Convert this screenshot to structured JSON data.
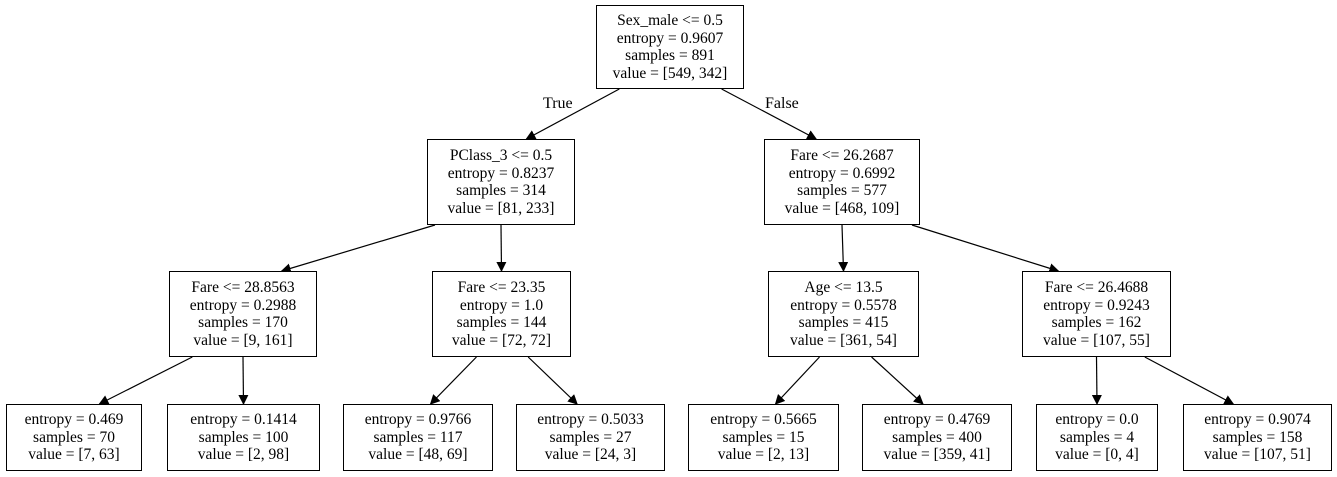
{
  "tree": {
    "edge_labels": {
      "true_label": "True",
      "false_label": "False"
    },
    "nodes": [
      {
        "id": "root",
        "lines": [
          "Sex_male <= 0.5",
          "entropy = 0.9607",
          "samples = 891",
          "value = [549, 342]"
        ]
      },
      {
        "id": "n1",
        "lines": [
          "PClass_3 <= 0.5",
          "entropy = 0.8237",
          "samples = 314",
          "value = [81, 233]"
        ]
      },
      {
        "id": "n2",
        "lines": [
          "Fare <= 26.2687",
          "entropy = 0.6992",
          "samples = 577",
          "value = [468, 109]"
        ]
      },
      {
        "id": "n3",
        "lines": [
          "Fare <= 28.8563",
          "entropy = 0.2988",
          "samples = 170",
          "value = [9, 161]"
        ]
      },
      {
        "id": "n4",
        "lines": [
          "Fare <= 23.35",
          "entropy = 1.0",
          "samples = 144",
          "value = [72, 72]"
        ]
      },
      {
        "id": "n5",
        "lines": [
          "Age <= 13.5",
          "entropy = 0.5578",
          "samples = 415",
          "value = [361, 54]"
        ]
      },
      {
        "id": "n6",
        "lines": [
          "Fare <= 26.4688",
          "entropy = 0.9243",
          "samples = 162",
          "value = [107, 55]"
        ]
      },
      {
        "id": "leaf1",
        "lines": [
          "entropy = 0.469",
          "samples = 70",
          "value = [7, 63]"
        ]
      },
      {
        "id": "leaf2",
        "lines": [
          "entropy = 0.1414",
          "samples = 100",
          "value = [2, 98]"
        ]
      },
      {
        "id": "leaf3",
        "lines": [
          "entropy = 0.9766",
          "samples = 117",
          "value = [48, 69]"
        ]
      },
      {
        "id": "leaf4",
        "lines": [
          "entropy = 0.5033",
          "samples = 27",
          "value = [24, 3]"
        ]
      },
      {
        "id": "leaf5",
        "lines": [
          "entropy = 0.5665",
          "samples = 15",
          "value = [2, 13]"
        ]
      },
      {
        "id": "leaf6",
        "lines": [
          "entropy = 0.4769",
          "samples = 400",
          "value = [359, 41]"
        ]
      },
      {
        "id": "leaf7",
        "lines": [
          "entropy = 0.0",
          "samples = 4",
          "value = [0, 4]"
        ]
      },
      {
        "id": "leaf8",
        "lines": [
          "entropy = 0.9074",
          "samples = 158",
          "value = [107, 51]"
        ]
      }
    ],
    "edges": [
      [
        "root",
        "n1"
      ],
      [
        "root",
        "n2"
      ],
      [
        "n1",
        "n3"
      ],
      [
        "n1",
        "n4"
      ],
      [
        "n2",
        "n5"
      ],
      [
        "n2",
        "n6"
      ],
      [
        "n3",
        "leaf1"
      ],
      [
        "n3",
        "leaf2"
      ],
      [
        "n4",
        "leaf3"
      ],
      [
        "n4",
        "leaf4"
      ],
      [
        "n5",
        "leaf5"
      ],
      [
        "n5",
        "leaf6"
      ],
      [
        "n6",
        "leaf7"
      ],
      [
        "n6",
        "leaf8"
      ]
    ]
  }
}
